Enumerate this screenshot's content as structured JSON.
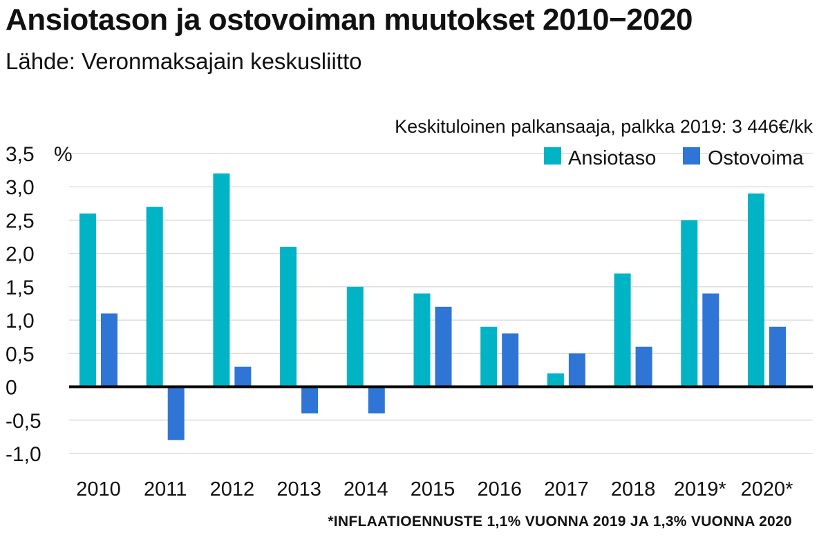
{
  "header": {
    "title": "Ansiotason ja ostovoiman muutokset 2010−2020",
    "subtitle": "Lähde: Veronmaksajain keskusliitto"
  },
  "chart_data": {
    "type": "bar",
    "note": "Keskituloinen palkansaaja, palkka 2019: 3 446€/kk",
    "unit": "%",
    "categories": [
      "2010",
      "2011",
      "2012",
      "2013",
      "2014",
      "2015",
      "2016",
      "2017",
      "2018",
      "2019*",
      "2020*"
    ],
    "series": [
      {
        "name": "Ansiotaso",
        "color": "#00b4c6",
        "values": [
          2.6,
          2.7,
          3.2,
          2.1,
          1.5,
          1.4,
          0.9,
          0.2,
          1.7,
          2.5,
          2.9
        ]
      },
      {
        "name": "Ostovoima",
        "color": "#2f75d6",
        "values": [
          1.1,
          -0.8,
          0.3,
          -0.4,
          -0.4,
          1.2,
          0.8,
          0.5,
          0.6,
          1.4,
          0.9
        ]
      }
    ],
    "ylim": [
      -1.0,
      3.5
    ],
    "yticks": [
      {
        "value": 3.5,
        "label": "3,5"
      },
      {
        "value": 3.0,
        "label": "3,0"
      },
      {
        "value": 2.5,
        "label": "2,5"
      },
      {
        "value": 2.0,
        "label": "2,0"
      },
      {
        "value": 1.5,
        "label": "1,5"
      },
      {
        "value": 1.0,
        "label": "1,0"
      },
      {
        "value": 0.5,
        "label": "0,5"
      },
      {
        "value": 0,
        "label": "0"
      },
      {
        "value": -0.5,
        "label": "-0,5"
      },
      {
        "value": -1.0,
        "label": "-1,0"
      }
    ],
    "grid": true,
    "legend_position": "top-right",
    "footnote": "*INFLAATIOENNUSTE 1,1% VUONNA 2019 JA 1,3% VUONNA 2020"
  }
}
